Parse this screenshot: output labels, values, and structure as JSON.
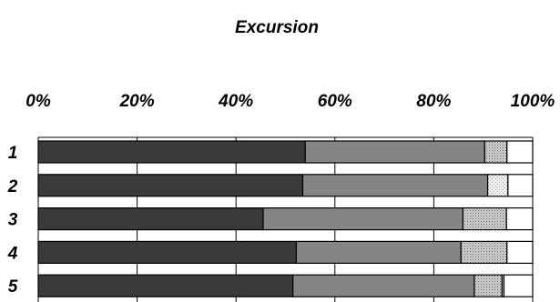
{
  "chart_data": {
    "type": "bar",
    "orientation": "horizontal",
    "stacked": true,
    "normalized_percent": true,
    "title": "Excursion",
    "xlim": [
      0,
      100
    ],
    "xticks": [
      "0%",
      "20%",
      "40%",
      "60%",
      "80%",
      "100%"
    ],
    "xtick_values": [
      0,
      20,
      40,
      60,
      80,
      100
    ],
    "x_axis_position": "top",
    "grid": "vertical",
    "legend": "none",
    "categories": [
      "1",
      "2",
      "3",
      "4",
      "5"
    ],
    "series": [
      {
        "fill": "#3a3a3a",
        "pattern": "solid",
        "values": [
          54.0,
          53.5,
          45.5,
          52.2,
          51.5
        ]
      },
      {
        "fill": "#858585",
        "pattern": "solid",
        "values": [
          36.3,
          37.4,
          40.4,
          33.3,
          36.7
        ]
      },
      {
        "fill": "#c8c8c8",
        "pattern": "dots-dense",
        "values": [
          4.5,
          0,
          8.8,
          9.3,
          5.6
        ]
      },
      {
        "fill": "#e6e6e6",
        "pattern": "dots-light",
        "values": [
          0,
          4.1,
          0,
          0,
          0
        ]
      },
      {
        "fill": "#d0d0d0",
        "pattern": "thin-gray",
        "values": [
          0,
          0,
          0,
          0,
          0.4
        ]
      },
      {
        "fill": "#ffffff",
        "pattern": "solid",
        "values": [
          5.2,
          5.0,
          5.3,
          5.2,
          5.8
        ]
      }
    ]
  }
}
